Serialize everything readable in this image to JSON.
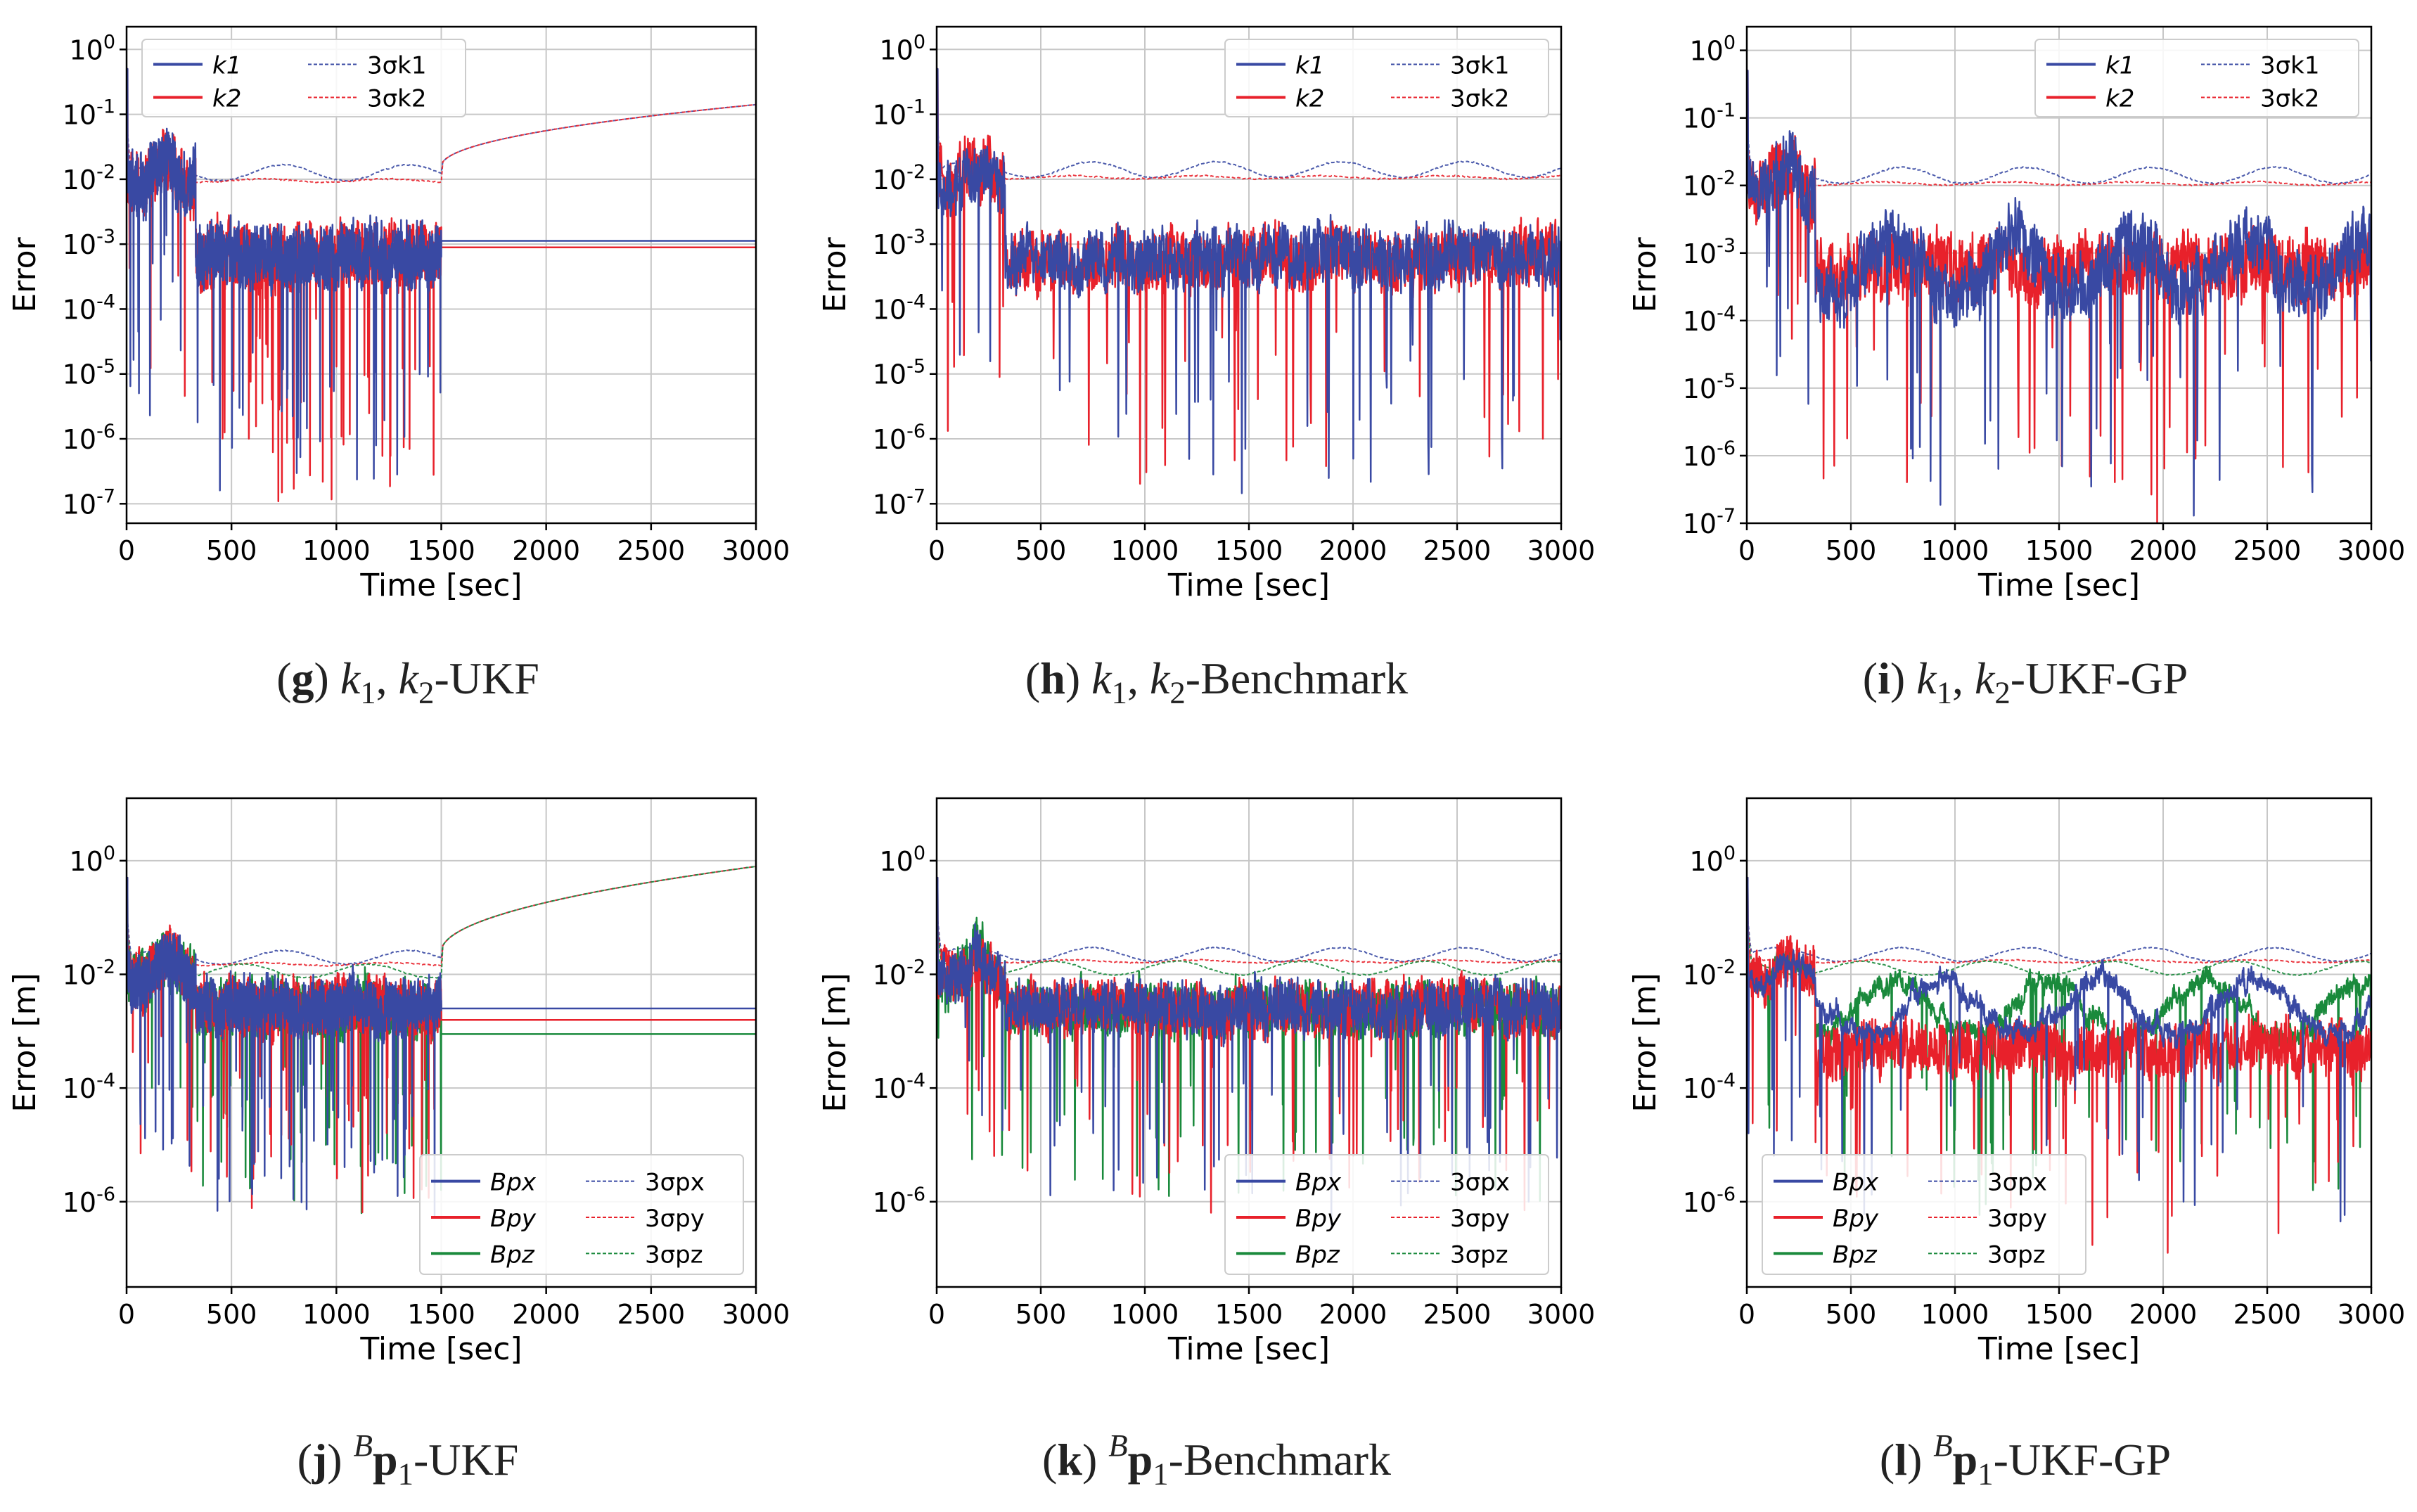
{
  "colors": {
    "blue": "#3949a3",
    "red": "#e8212b",
    "green": "#1a8a3c",
    "grid": "#c7c7c7",
    "axis": "#000000"
  },
  "axes_common": {
    "xlabel": "Time [sec]",
    "xticks": [
      "0",
      "500",
      "1000",
      "1500",
      "2000",
      "2500",
      "3000"
    ]
  },
  "chart_data": [
    {
      "id": "g",
      "type": "line",
      "scale": "log",
      "ylabel": "Error",
      "xlabel": "Time [sec]",
      "xlim": [
        0,
        3000
      ],
      "ylim_exp": [
        -7.3,
        0.35
      ],
      "yticks": [
        "10^0",
        "10^-1",
        "10^-2",
        "10^-3",
        "10^-4",
        "10^-5",
        "10^-6",
        "10^-7"
      ],
      "legend": [
        "k1",
        "k2",
        "3σk1",
        "3σk2"
      ],
      "legend_position": "top-left",
      "sigma_mean_exp": -1.9,
      "sigma_after_exp_end": -0.95,
      "noise_end": 1500,
      "hold_values_exp": [
        -2.95,
        -3.05
      ]
    },
    {
      "id": "h",
      "type": "line",
      "scale": "log",
      "ylabel": "Error",
      "xlabel": "Time [sec]",
      "xlim": [
        0,
        3000
      ],
      "ylim_exp": [
        -7.3,
        0.35
      ],
      "yticks": [
        "10^0",
        "10^-1",
        "10^-2",
        "10^-3",
        "10^-4",
        "10^-5",
        "10^-6",
        "10^-7"
      ],
      "legend": [
        "k1",
        "k2",
        "3σk1",
        "3σk2"
      ],
      "legend_position": "top-right",
      "sigma_mean_exp": -1.85,
      "noise_end": 3000
    },
    {
      "id": "i",
      "type": "line",
      "scale": "log",
      "ylabel": "Error",
      "xlabel": "Time [sec]",
      "xlim": [
        0,
        3000
      ],
      "ylim_exp": [
        -7.0,
        0.35
      ],
      "yticks": [
        "10^0",
        "10^-1",
        "10^-2",
        "10^-3",
        "10^-4",
        "10^-5",
        "10^-6",
        "10^-7"
      ],
      "legend": [
        "k1",
        "k2",
        "3σk1",
        "3σk2"
      ],
      "legend_position": "top-right",
      "sigma_mean_exp": -1.85,
      "noise_end": 3000
    },
    {
      "id": "j",
      "type": "line",
      "scale": "log",
      "ylabel": "Error [m]",
      "xlabel": "Time [sec]",
      "xlim": [
        0,
        3000
      ],
      "ylim_exp": [
        -7.5,
        1.1
      ],
      "yticks": [
        "10^0",
        "10^-2",
        "10^-4",
        "10^-6"
      ],
      "legend": [
        "Bpx",
        "Bpy",
        "Bpz",
        "3σpx",
        "3σpy",
        "3σpz"
      ],
      "legend_position": "bottom-right",
      "sigma_mean_exp": -1.7,
      "sigma_after_exp_end": -0.2,
      "noise_end": 1500,
      "hold_values_exp": [
        -2.6,
        -2.8,
        -3.05
      ]
    },
    {
      "id": "k",
      "type": "line",
      "scale": "log",
      "ylabel": "Error [m]",
      "xlabel": "Time [sec]",
      "xlim": [
        0,
        3000
      ],
      "ylim_exp": [
        -7.5,
        1.1
      ],
      "yticks": [
        "10^0",
        "10^-2",
        "10^-4",
        "10^-6"
      ],
      "legend": [
        "Bpx",
        "Bpy",
        "Bpz",
        "3σpx",
        "3σpy",
        "3σpz"
      ],
      "legend_position": "bottom-right",
      "sigma_mean_exp": -1.65,
      "noise_end": 3000
    },
    {
      "id": "l",
      "type": "line",
      "scale": "log",
      "ylabel": "Error [m]",
      "xlabel": "Time [sec]",
      "xlim": [
        0,
        3000
      ],
      "ylim_exp": [
        -7.5,
        1.1
      ],
      "yticks": [
        "10^0",
        "10^-2",
        "10^-4",
        "10^-6"
      ],
      "legend": [
        "Bpx",
        "Bpy",
        "Bpz",
        "3σpx",
        "3σpy",
        "3σpz"
      ],
      "legend_position": "bottom-left",
      "sigma_mean_exp": -1.65,
      "noise_end": 3000
    }
  ],
  "captions": {
    "g": {
      "letter": "g",
      "text": "-UKF"
    },
    "h": {
      "letter": "h",
      "text": "-Benchmark"
    },
    "i": {
      "letter": "i",
      "text": "-UKF-GP"
    },
    "j": {
      "letter": "j",
      "text": "-UKF"
    },
    "k": {
      "letter": "k",
      "text": "-Benchmark"
    },
    "l": {
      "letter": "l",
      "text": "-UKF-GP"
    }
  }
}
